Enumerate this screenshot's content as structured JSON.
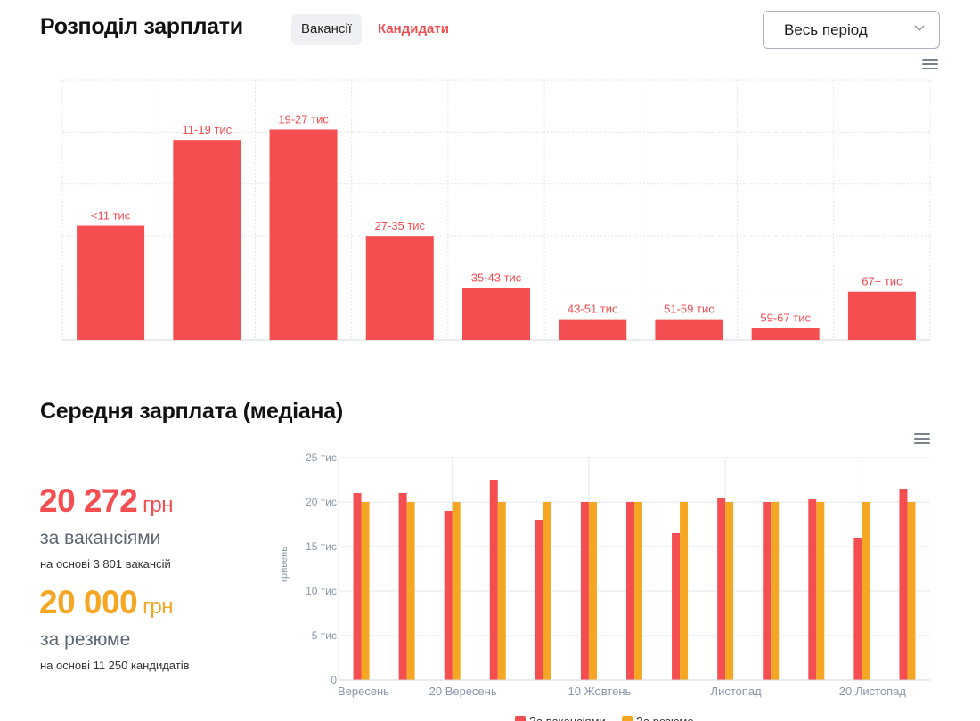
{
  "header": {
    "title": "Розподіл зарплати",
    "tab_vacancies": "Вакансії",
    "tab_candidates": "Кандидати",
    "period_select": "Весь період"
  },
  "colors": {
    "red": "#f44e51",
    "orange": "#f5a623",
    "axis_text": "#8a97a8"
  },
  "median": {
    "title": "Середня зарплата (медіана)",
    "vacancies_value": "20 272",
    "vacancies_unit": "грн",
    "vacancies_label": "за вакансіями",
    "vacancies_note": "на основі 3 801 вакансій",
    "resume_value": "20 000",
    "resume_unit": "грн",
    "resume_label": "за резюме",
    "resume_note": "на основі 11 250 кандидатів"
  },
  "chart_data": [
    {
      "type": "bar",
      "categories": [
        "<11 тис",
        "11-19 тис",
        "19-27 тис",
        "27-35 тис",
        "35-43 тис",
        "43-51 тис",
        "51-59 тис",
        "59-67 тис",
        "67+ тис"
      ],
      "values": [
        22,
        38.5,
        40.5,
        20,
        10,
        4,
        4,
        2.3,
        9.3
      ],
      "ylim": [
        0,
        50
      ],
      "grid": true,
      "data_labels": true
    },
    {
      "type": "bar",
      "ylabel": "гривень",
      "yticks": [
        "0",
        "5 тис",
        "10 тис",
        "15 тис",
        "20 тис",
        "25 тис"
      ],
      "ylim": [
        0,
        25000
      ],
      "xticks": [
        "Вересень",
        "20 Вересень",
        "10 Жовтень",
        "Листопад",
        "20 Листопад"
      ],
      "series": [
        {
          "name": "За вакансіями",
          "values": [
            21000,
            21000,
            19000,
            22500,
            18000,
            20000,
            20000,
            16500,
            20500,
            20000,
            20300,
            16000,
            21500
          ]
        },
        {
          "name": "За резюме",
          "values": [
            20000,
            20000,
            20000,
            20000,
            20000,
            20000,
            20000,
            20000,
            20000,
            20000,
            20000,
            20000,
            20000
          ]
        }
      ],
      "legend": "bottom",
      "grid": true
    }
  ]
}
